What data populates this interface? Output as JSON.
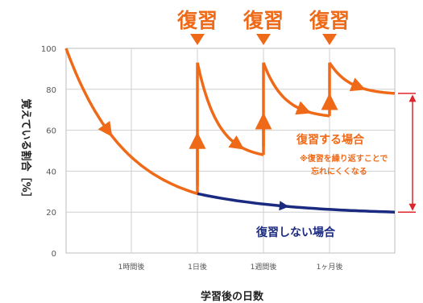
{
  "chart_data": {
    "type": "line",
    "ylabel": "覚えている割合［%］",
    "xlabel": "学習後の日数",
    "ylim": [
      0,
      100
    ],
    "yticks": [
      0,
      20,
      40,
      60,
      80,
      100
    ],
    "x_tick_labels": [
      "1時間後",
      "1日後",
      "1週間後",
      "1ヶ月後"
    ],
    "grid": true,
    "review_label": "復習",
    "review_points": [
      "1日後",
      "1週間後",
      "1ヶ月後"
    ],
    "series": [
      {
        "label": "復習する場合",
        "note_lines": [
          "※復習を繰り返すことで",
          "忘れにくくなる"
        ],
        "color": "#ef6a18",
        "segments": [
          {
            "from": "0",
            "to": "1日後",
            "start": 100,
            "end": 29
          },
          {
            "from": "1日後",
            "to": "1週間後",
            "start": 93,
            "end": 48
          },
          {
            "from": "1週間後",
            "to": "1ヶ月後",
            "start": 93,
            "end": 67
          },
          {
            "from": "1ヶ月後",
            "to": "end",
            "start": 93,
            "end": 78
          }
        ]
      },
      {
        "label": "復習しない場合",
        "color": "#1a2a80",
        "segments": [
          {
            "from": "1日後",
            "to": "end",
            "start": 29,
            "end": 20
          }
        ]
      }
    ],
    "bracket_color": "#e0242c"
  }
}
